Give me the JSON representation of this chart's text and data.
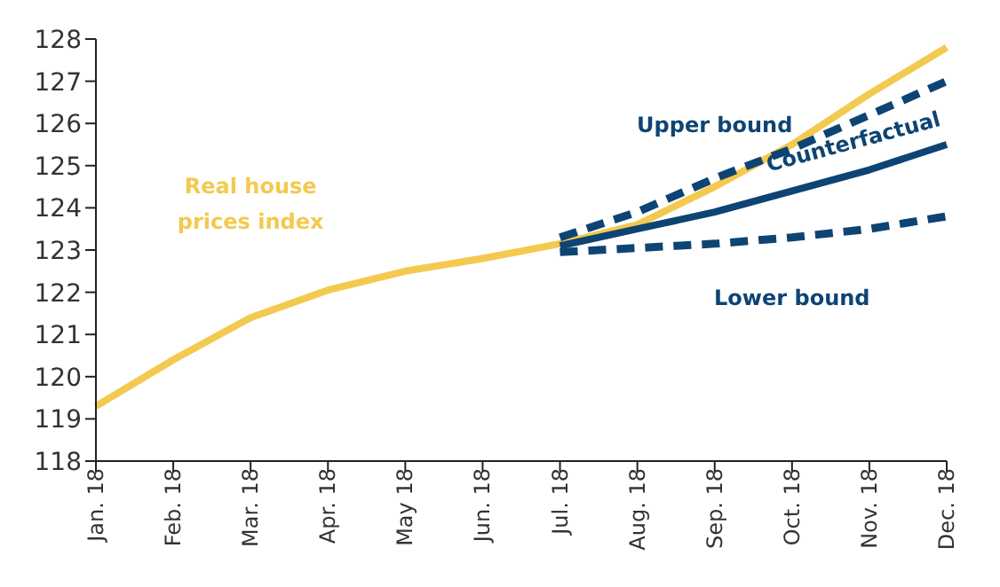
{
  "chart_data": {
    "type": "line",
    "categories": [
      "Jan. 18",
      "Feb. 18",
      "Mar. 18",
      "Apr. 18",
      "May 18",
      "Jun. 18",
      "Jul. 18",
      "Aug. 18",
      "Sep. 18",
      "Oct. 18",
      "Nov. 18",
      "Dec. 18"
    ],
    "series": [
      {
        "name": "Real house prices index",
        "color": "#f3c94f",
        "line_style": "solid",
        "values": [
          119.3,
          120.4,
          121.4,
          122.05,
          122.5,
          122.8,
          123.15,
          123.6,
          124.5,
          125.5,
          126.7,
          127.8
        ]
      },
      {
        "name": "Upper bound",
        "color": "#0d4474",
        "line_style": "dashed",
        "values": [
          null,
          null,
          null,
          null,
          null,
          null,
          123.3,
          123.9,
          124.7,
          125.4,
          126.2,
          127.0
        ]
      },
      {
        "name": "Counterfactual",
        "color": "#0d4474",
        "line_style": "solid",
        "values": [
          null,
          null,
          null,
          null,
          null,
          null,
          123.1,
          123.5,
          123.9,
          124.4,
          124.9,
          125.5
        ]
      },
      {
        "name": "Lower bound",
        "color": "#0d4474",
        "line_style": "dashed",
        "values": [
          null,
          null,
          null,
          null,
          null,
          null,
          122.95,
          123.05,
          123.15,
          123.3,
          123.5,
          123.8
        ]
      }
    ],
    "ylim": [
      118,
      128
    ],
    "yticks": [
      118,
      119,
      120,
      121,
      122,
      123,
      124,
      125,
      126,
      127,
      128
    ],
    "grid": false,
    "legend": false,
    "marker": "none"
  }
}
